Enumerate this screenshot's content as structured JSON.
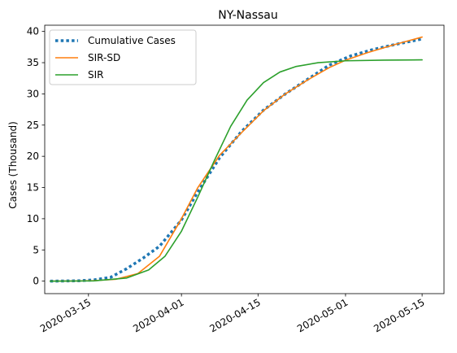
{
  "chart_data": {
    "type": "line",
    "title": "NY-Nassau",
    "xlabel": "",
    "ylabel": "Cases (Thousand)",
    "x_range": [
      "2020-03-07",
      "2020-05-19"
    ],
    "ylim": [
      -2,
      41
    ],
    "yticks": [
      0,
      5,
      10,
      15,
      20,
      25,
      30,
      35,
      40
    ],
    "xticks": [
      "2020-03-15",
      "2020-04-01",
      "2020-04-15",
      "2020-05-01",
      "2020-05-15"
    ],
    "grid": false,
    "legend_position": "upper-left",
    "series": [
      {
        "name": "Cumulative Cases",
        "color": "#1f77b4",
        "style": "dotted",
        "x": [
          "2020-03-08",
          "2020-03-13",
          "2020-03-16",
          "2020-03-19",
          "2020-03-22",
          "2020-03-25",
          "2020-03-28",
          "2020-04-01",
          "2020-04-04",
          "2020-04-08",
          "2020-04-12",
          "2020-04-16",
          "2020-04-20",
          "2020-04-24",
          "2020-04-28",
          "2020-05-02",
          "2020-05-06",
          "2020-05-10",
          "2020-05-15"
        ],
        "values": [
          0,
          0.05,
          0.2,
          0.6,
          2,
          3.7,
          5.6,
          9.8,
          14.3,
          19.8,
          24,
          27.4,
          30,
          32.3,
          34.6,
          36.1,
          37.1,
          37.9,
          38.8
        ]
      },
      {
        "name": "SIR-SD",
        "color": "#ff7f0e",
        "style": "solid",
        "x": [
          "2020-03-08",
          "2020-03-12",
          "2020-03-16",
          "2020-03-20",
          "2020-03-24",
          "2020-03-28",
          "2020-04-01",
          "2020-04-04",
          "2020-04-08",
          "2020-04-12",
          "2020-04-16",
          "2020-04-20",
          "2020-04-24",
          "2020-04-28",
          "2020-05-01",
          "2020-05-05",
          "2020-05-10",
          "2020-05-15"
        ],
        "values": [
          0,
          0.02,
          0.08,
          0.3,
          1.2,
          4,
          10,
          15,
          20.2,
          23.8,
          27.3,
          30,
          32.2,
          34.2,
          35.4,
          36.6,
          37.9,
          39.1
        ]
      },
      {
        "name": "SIR",
        "color": "#2ca02c",
        "style": "solid",
        "x": [
          "2020-03-08",
          "2020-03-16",
          "2020-03-22",
          "2020-03-26",
          "2020-03-29",
          "2020-04-01",
          "2020-04-04",
          "2020-04-07",
          "2020-04-10",
          "2020-04-13",
          "2020-04-16",
          "2020-04-19",
          "2020-04-22",
          "2020-04-26",
          "2020-05-01",
          "2020-05-08",
          "2020-05-15"
        ],
        "values": [
          0,
          0.05,
          0.5,
          1.8,
          4,
          8,
          13.5,
          19.3,
          24.8,
          29,
          31.8,
          33.5,
          34.4,
          35,
          35.3,
          35.4,
          35.45
        ]
      }
    ]
  }
}
